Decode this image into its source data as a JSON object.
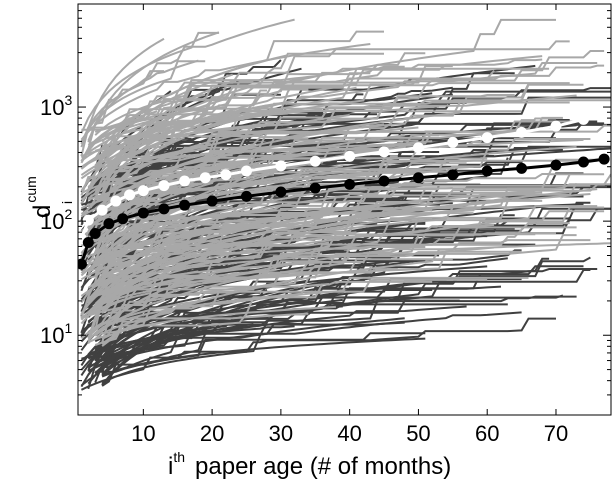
{
  "chart_data": {
    "type": "line",
    "title": "",
    "xlabel": {
      "base": "i",
      "sup": "th",
      "text": "paper age (# of months)"
    },
    "ylabel": {
      "base": "d",
      "sub": "i",
      "sup": "cum"
    },
    "xlim": [
      0.5,
      78
    ],
    "ylim": [
      2,
      8000
    ],
    "yscale": "log",
    "grid": false,
    "x_ticks": [
      10,
      20,
      30,
      40,
      50,
      60,
      70
    ],
    "x_tick_labels": [
      "10",
      "20",
      "30",
      "40",
      "50",
      "60",
      "70"
    ],
    "y_ticks": [
      10,
      100,
      1000
    ],
    "y_tick_labels": [
      {
        "base": "10",
        "exp": "1"
      },
      {
        "base": "10",
        "exp": "2"
      },
      {
        "base": "10",
        "exp": "3"
      }
    ],
    "series": [
      {
        "color": "#ffffff",
        "marker": "circle",
        "x": [
          1,
          2,
          4,
          6,
          8,
          10,
          13,
          16,
          19,
          22,
          25,
          30,
          35,
          40,
          45,
          50,
          55,
          60,
          65,
          70,
          74,
          77
        ],
        "y": [
          70,
          102,
          125,
          150,
          170,
          185,
          205,
          225,
          240,
          255,
          275,
          305,
          335,
          370,
          405,
          440,
          490,
          540,
          600,
          680,
          780,
          900
        ]
      },
      {
        "color": "#000000",
        "marker": "circle",
        "x": [
          1,
          2,
          3,
          5,
          7,
          10,
          13,
          16,
          20,
          25,
          30,
          35,
          40,
          45,
          50,
          55,
          60,
          65,
          70,
          74,
          77
        ],
        "y": [
          42,
          65,
          78,
          95,
          105,
          118,
          128,
          138,
          150,
          165,
          180,
          195,
          210,
          225,
          240,
          255,
          275,
          290,
          310,
          330,
          350
        ]
      }
    ],
    "background_curves": {
      "colors": [
        "#404040",
        "#a8a8a8"
      ],
      "x_range": [
        1,
        78
      ],
      "y_range": [
        3,
        8000
      ]
    }
  }
}
